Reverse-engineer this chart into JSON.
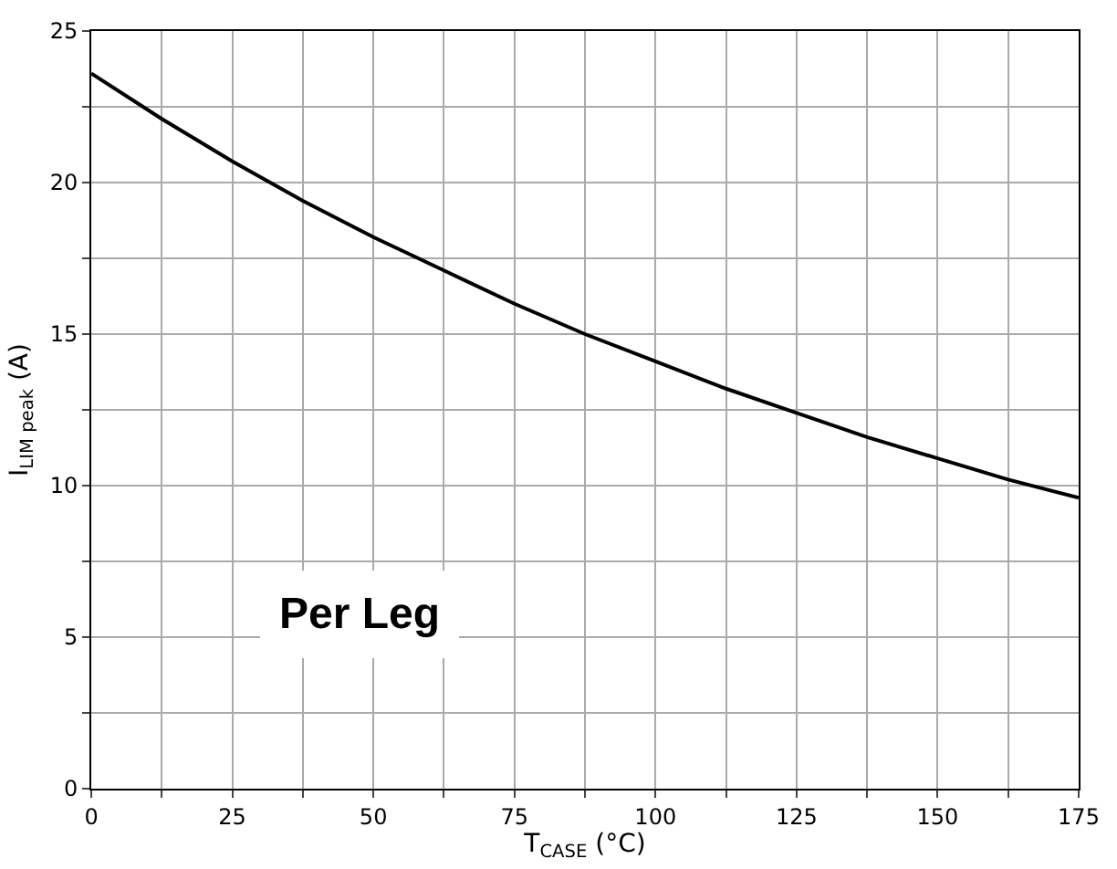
{
  "chart_data": {
    "type": "line",
    "xlabel": "T$_{CASE}$ (°C)",
    "ylabel": "I$_{LIM peak}$ (A)",
    "x": [
      0,
      12.5,
      25,
      37.5,
      50,
      62.5,
      75,
      87.5,
      100,
      112.5,
      125,
      137.5,
      150,
      162.5,
      175
    ],
    "series": [
      {
        "color": "#000000",
        "values": [
          23.6,
          22.1,
          20.7,
          19.4,
          18.2,
          17.1,
          16.0,
          15.0,
          14.1,
          13.2,
          12.4,
          11.6,
          10.9,
          10.2,
          9.6
        ]
      }
    ],
    "xlim": [
      0,
      175
    ],
    "ylim": [
      0,
      25
    ],
    "xticks": [
      0,
      {
        "value": 12.5,
        "label": null
      },
      25,
      {
        "value": 37.5,
        "label": null
      },
      50,
      {
        "value": 62.5,
        "label": null
      },
      75,
      {
        "value": 87.5,
        "label": null
      },
      100,
      {
        "value": 112.5,
        "label": null
      },
      125,
      {
        "value": 137.5,
        "label": null
      },
      150,
      {
        "value": 162.5,
        "label": null
      },
      175
    ],
    "yticks": [
      0,
      {
        "value": 2.5,
        "label": null
      },
      5,
      {
        "value": 7.5,
        "label": null
      },
      10,
      {
        "value": 12.5,
        "label": null
      },
      15,
      {
        "value": 17.5,
        "label": null
      },
      20,
      {
        "value": 22.5,
        "label": null
      },
      25
    ],
    "grid": true,
    "marker": "none",
    "line_style": "solid",
    "annotations": [
      "Per Leg"
    ]
  }
}
